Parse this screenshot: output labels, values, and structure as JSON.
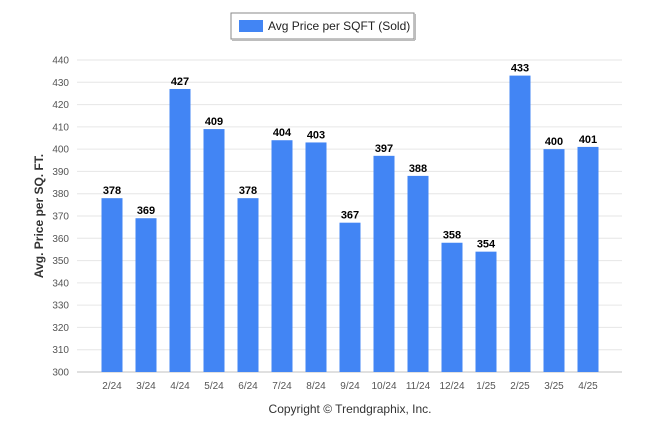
{
  "chart_data": {
    "type": "bar",
    "categories": [
      "2/24",
      "3/24",
      "4/24",
      "5/24",
      "6/24",
      "7/24",
      "8/24",
      "9/24",
      "10/24",
      "11/24",
      "12/24",
      "1/25",
      "2/25",
      "3/25",
      "4/25"
    ],
    "series": [
      {
        "name": "Avg Price per SQFT (Sold)",
        "color": "#4285f4",
        "values": [
          378,
          369,
          427,
          409,
          378,
          404,
          403,
          367,
          397,
          388,
          358,
          354,
          433,
          400,
          401
        ]
      }
    ],
    "ylabel": "Avg. Price per SQ. FT.",
    "xlabel": "",
    "ylim": [
      300,
      440
    ],
    "yticks": [
      300,
      310,
      320,
      330,
      340,
      350,
      360,
      370,
      380,
      390,
      400,
      410,
      420,
      430,
      440
    ],
    "grid": true,
    "legend_position": "top-center",
    "data_labels": true
  },
  "footer": {
    "copyright": "Copyright © Trendgraphix, Inc."
  }
}
